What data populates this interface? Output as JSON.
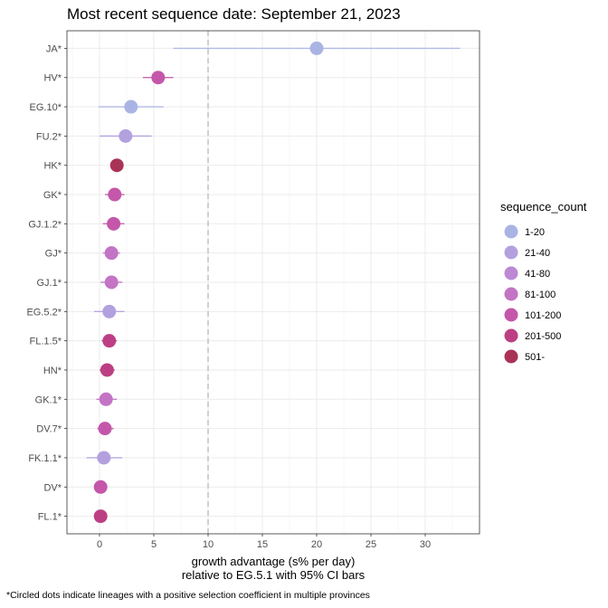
{
  "chart_data": {
    "type": "scatter",
    "title": "Most recent sequence date: September 21, 2023",
    "xlabel_line1": "growth advantage (s% per day)",
    "xlabel_line2": "relative to  EG.5.1  with 95% CI bars",
    "caption": "*Circled dots indicate lineages with a positive selection coefficient in multiple provinces",
    "xlim": [
      -3,
      35
    ],
    "x_ticks": [
      0,
      5,
      10,
      15,
      20,
      25,
      30
    ],
    "reference_line_x": 10,
    "legend_title": "sequence_count",
    "legend": [
      {
        "label": "1-20",
        "color": "#aab4e4"
      },
      {
        "label": "21-40",
        "color": "#b3a0df"
      },
      {
        "label": "41-80",
        "color": "#bd88d3"
      },
      {
        "label": "81-100",
        "color": "#c374c4"
      },
      {
        "label": "101-200",
        "color": "#c457aa"
      },
      {
        "label": "201-500",
        "color": "#bc3f84"
      },
      {
        "label": "501-",
        "color": "#a93356"
      }
    ],
    "points": [
      {
        "lineage": "JA*",
        "x": 20.0,
        "lo": 6.8,
        "hi": 33.2,
        "color": "#aab4e4"
      },
      {
        "lineage": "HV*",
        "x": 5.4,
        "lo": 4.0,
        "hi": 6.8,
        "color": "#c457aa"
      },
      {
        "lineage": "EG.10*",
        "x": 2.9,
        "lo": -0.1,
        "hi": 5.9,
        "color": "#aab4e4"
      },
      {
        "lineage": "FU.2*",
        "x": 2.4,
        "lo": 0.0,
        "hi": 4.8,
        "color": "#b3a0df"
      },
      {
        "lineage": "HK*",
        "x": 1.6,
        "lo": 1.1,
        "hi": 2.1,
        "color": "#a93356"
      },
      {
        "lineage": "GK*",
        "x": 1.4,
        "lo": 0.5,
        "hi": 2.3,
        "color": "#c457aa"
      },
      {
        "lineage": "GJ.1.2*",
        "x": 1.3,
        "lo": 0.3,
        "hi": 2.3,
        "color": "#c457aa"
      },
      {
        "lineage": "GJ*",
        "x": 1.1,
        "lo": 0.3,
        "hi": 1.9,
        "color": "#c374c4"
      },
      {
        "lineage": "GJ.1*",
        "x": 1.1,
        "lo": 0.1,
        "hi": 2.1,
        "color": "#c374c4"
      },
      {
        "lineage": "EG.5.2*",
        "x": 0.9,
        "lo": -0.5,
        "hi": 2.3,
        "color": "#b3a0df"
      },
      {
        "lineage": "FL.1.5*",
        "x": 0.9,
        "lo": 0.2,
        "hi": 1.6,
        "color": "#bc3f84"
      },
      {
        "lineage": "HN*",
        "x": 0.7,
        "lo": 0.0,
        "hi": 1.4,
        "color": "#bc3f84"
      },
      {
        "lineage": "GK.1*",
        "x": 0.6,
        "lo": -0.3,
        "hi": 1.6,
        "color": "#c374c4"
      },
      {
        "lineage": "DV.7*",
        "x": 0.5,
        "lo": -0.2,
        "hi": 1.3,
        "color": "#c457aa"
      },
      {
        "lineage": "FK.1.1*",
        "x": 0.4,
        "lo": -1.2,
        "hi": 2.1,
        "color": "#b3a0df"
      },
      {
        "lineage": "DV*",
        "x": 0.1,
        "lo": -0.3,
        "hi": 0.7,
        "color": "#c457aa"
      },
      {
        "lineage": "FL.1*",
        "x": 0.1,
        "lo": -0.1,
        "hi": 0.3,
        "color": "#bc3f84"
      }
    ]
  }
}
